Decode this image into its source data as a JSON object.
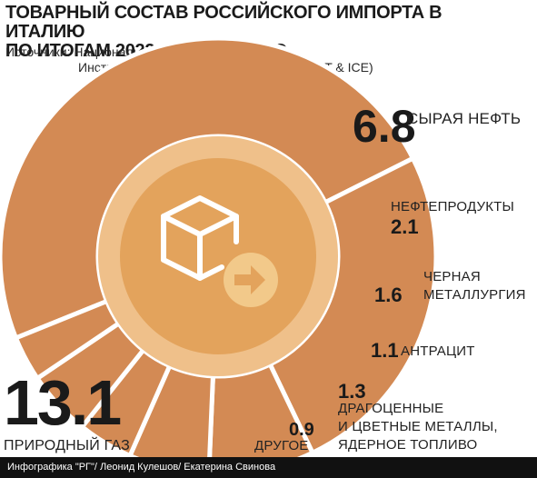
{
  "title_line1": "ТОВАРНЫЙ СОСТАВ РОССИЙСКОГО ИМПОРТА В ИТАЛИЮ",
  "title_line2": "ПО ИТОГАМ 2022 Г., МЛРД ЕВРО",
  "source_line1": "Источники: Национальный институт статистики,",
  "source_line2": "Институт внешней торговли Италии (ISTAT & ICE)",
  "footer": "Инфографика \"РГ\"/ Леонид Кулешов/ Екатерина Свинова",
  "colors": {
    "segment": "#d38a54",
    "separator": "#ffffff",
    "inner_ring": "#efc08a",
    "inner_disc": "#e3a35c",
    "icon": "#ffffff",
    "arrow_disc": "#f2c98a",
    "arrow": "#e3a35c"
  },
  "icon_name": "box-with-arrow-icon",
  "chart_data": {
    "type": "donut",
    "unit": "млрд евро",
    "slices": [
      {
        "label": "ПРИРОДНЫЙ ГАЗ",
        "value": 13.1,
        "value_text": "13.1"
      },
      {
        "label": "СЫРАЯ НЕФТЬ",
        "value": 6.8,
        "value_text": "6.8"
      },
      {
        "label": "НЕФТЕПРОДУКТЫ",
        "value": 2.1,
        "value_text": "2.1"
      },
      {
        "label_line1": "ЧЕРНАЯ",
        "label_line2": "МЕТАЛЛУРГИЯ",
        "value": 1.6,
        "value_text": "1.6"
      },
      {
        "label": "АНТРАЦИТ",
        "value": 1.1,
        "value_text": "1.1"
      },
      {
        "label_line1": "ДРАГОЦЕННЫЕ",
        "label_line2": "И ЦВЕТНЫЕ МЕТАЛЛЫ,",
        "label_line3": "ЯДЕРНОЕ ТОПЛИВО",
        "value": 1.3,
        "value_text": "1.3"
      },
      {
        "label": "ДРУГОЕ",
        "value": 0.9,
        "value_text": "0.9"
      }
    ]
  }
}
